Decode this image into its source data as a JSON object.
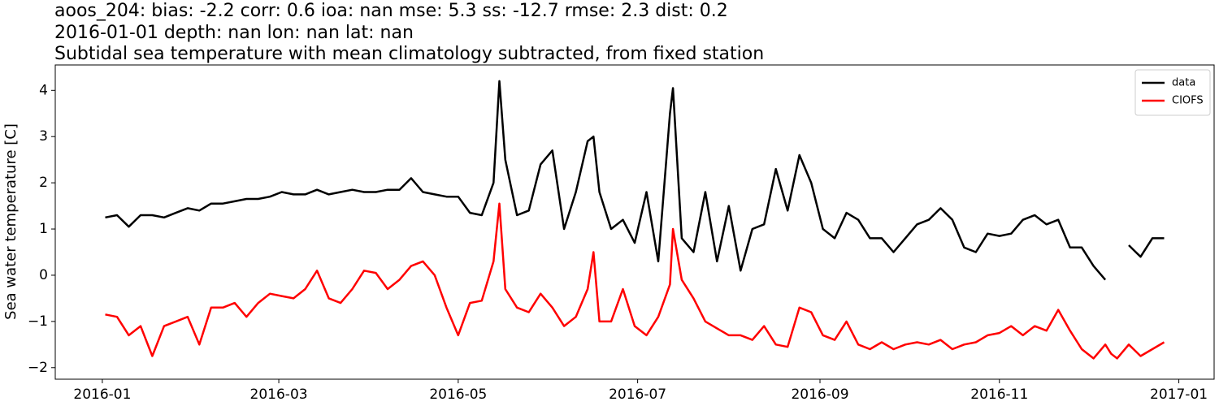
{
  "chart_data": {
    "type": "line",
    "title_lines": [
      "aoos_204: bias: -2.2  corr: 0.6  ioa: nan  mse: 5.3  ss: -12.7  rmse: 2.3  dist: 0.2",
      "2016-01-01 depth: nan lon: nan lat: nan",
      "Subtidal sea temperature with mean climatology subtracted, from fixed station"
    ],
    "ylabel": "Sea water temperature [C]",
    "x": [
      "2016-01-02",
      "2016-01-06",
      "2016-01-10",
      "2016-01-14",
      "2016-01-18",
      "2016-01-22",
      "2016-01-26",
      "2016-01-30",
      "2016-02-03",
      "2016-02-07",
      "2016-02-11",
      "2016-02-15",
      "2016-02-19",
      "2016-02-23",
      "2016-02-27",
      "2016-03-02",
      "2016-03-06",
      "2016-03-10",
      "2016-03-14",
      "2016-03-18",
      "2016-03-22",
      "2016-03-26",
      "2016-03-30",
      "2016-04-03",
      "2016-04-07",
      "2016-04-11",
      "2016-04-15",
      "2016-04-19",
      "2016-04-23",
      "2016-04-27",
      "2016-05-01",
      "2016-05-05",
      "2016-05-09",
      "2016-05-13",
      "2016-05-15",
      "2016-05-17",
      "2016-05-21",
      "2016-05-25",
      "2016-05-29",
      "2016-06-02",
      "2016-06-06",
      "2016-06-10",
      "2016-06-14",
      "2016-06-16",
      "2016-06-18",
      "2016-06-22",
      "2016-06-26",
      "2016-06-30",
      "2016-07-04",
      "2016-07-08",
      "2016-07-12",
      "2016-07-13",
      "2016-07-16",
      "2016-07-20",
      "2016-07-24",
      "2016-07-28",
      "2016-08-01",
      "2016-08-05",
      "2016-08-09",
      "2016-08-13",
      "2016-08-17",
      "2016-08-21",
      "2016-08-25",
      "2016-08-29",
      "2016-09-02",
      "2016-09-06",
      "2016-09-10",
      "2016-09-14",
      "2016-09-18",
      "2016-09-22",
      "2016-09-26",
      "2016-09-30",
      "2016-10-04",
      "2016-10-08",
      "2016-10-12",
      "2016-10-16",
      "2016-10-20",
      "2016-10-24",
      "2016-10-28",
      "2016-11-01",
      "2016-11-05",
      "2016-11-09",
      "2016-11-13",
      "2016-11-17",
      "2016-11-21",
      "2016-11-25",
      "2016-11-29",
      "2016-12-03",
      "2016-12-07",
      "2016-12-09",
      "2016-12-11",
      "2016-12-15",
      "2016-12-19",
      "2016-12-23",
      "2016-12-27"
    ],
    "series": [
      {
        "name": "data",
        "color": "#000000",
        "values": [
          1.25,
          1.3,
          1.05,
          1.3,
          1.3,
          1.25,
          1.35,
          1.45,
          1.4,
          1.55,
          1.55,
          1.6,
          1.65,
          1.65,
          1.7,
          1.8,
          1.75,
          1.75,
          1.85,
          1.75,
          1.8,
          1.85,
          1.8,
          1.8,
          1.85,
          1.85,
          2.1,
          1.8,
          1.75,
          1.7,
          1.7,
          1.35,
          1.3,
          2.0,
          4.2,
          2.5,
          1.3,
          1.4,
          2.4,
          2.7,
          1.0,
          1.8,
          2.9,
          3.0,
          1.8,
          1.0,
          1.2,
          0.7,
          1.8,
          0.3,
          3.5,
          4.05,
          0.8,
          0.5,
          1.8,
          0.3,
          1.5,
          0.1,
          1.0,
          1.1,
          2.3,
          1.4,
          2.6,
          2.0,
          1.0,
          0.8,
          1.35,
          1.2,
          0.8,
          0.8,
          0.5,
          0.8,
          1.1,
          1.2,
          1.45,
          1.2,
          0.6,
          0.5,
          0.9,
          0.85,
          0.9,
          1.2,
          1.3,
          1.1,
          1.2,
          0.6,
          0.6,
          0.2,
          -0.1,
          null,
          null,
          0.65,
          0.4,
          0.8,
          0.8
        ]
      },
      {
        "name": "CIOFS",
        "color": "#ff0000",
        "values": [
          -0.85,
          -0.9,
          -1.3,
          -1.1,
          -1.75,
          -1.1,
          -1.0,
          -0.9,
          -1.5,
          -0.7,
          -0.7,
          -0.6,
          -0.9,
          -0.6,
          -0.4,
          -0.45,
          -0.5,
          -0.3,
          0.1,
          -0.5,
          -0.6,
          -0.3,
          0.1,
          0.05,
          -0.3,
          -0.1,
          0.2,
          0.3,
          0.0,
          -0.7,
          -1.3,
          -0.6,
          -0.55,
          0.3,
          1.55,
          -0.3,
          -0.7,
          -0.8,
          -0.4,
          -0.7,
          -1.1,
          -0.9,
          -0.3,
          0.5,
          -1.0,
          -1.0,
          -0.3,
          -1.1,
          -1.3,
          -0.9,
          -0.2,
          1.0,
          -0.1,
          -0.5,
          -1.0,
          -1.15,
          -1.3,
          -1.3,
          -1.4,
          -1.1,
          -1.5,
          -1.55,
          -0.7,
          -0.8,
          -1.3,
          -1.4,
          -1.0,
          -1.5,
          -1.6,
          -1.45,
          -1.6,
          -1.5,
          -1.45,
          -1.5,
          -1.4,
          -1.6,
          -1.5,
          -1.45,
          -1.3,
          -1.25,
          -1.1,
          -1.3,
          -1.1,
          -1.2,
          -0.75,
          -1.2,
          -1.6,
          -1.8,
          -1.5,
          -1.7,
          -1.8,
          -1.5,
          -1.75,
          -1.6,
          -1.45
        ]
      }
    ],
    "xlim": [
      "2015-12-16",
      "2017-01-13"
    ],
    "xticks": [
      {
        "value": "2016-01-01",
        "label": "2016-01"
      },
      {
        "value": "2016-03-01",
        "label": "2016-03"
      },
      {
        "value": "2016-05-01",
        "label": "2016-05"
      },
      {
        "value": "2016-07-01",
        "label": "2016-07"
      },
      {
        "value": "2016-09-01",
        "label": "2016-09"
      },
      {
        "value": "2016-11-01",
        "label": "2016-11"
      },
      {
        "value": "2017-01-01",
        "label": "2017-01"
      }
    ],
    "ylim": [
      -2.25,
      4.55
    ],
    "yticks": [
      {
        "value": -2,
        "label": "−2"
      },
      {
        "value": -1,
        "label": "−1"
      },
      0,
      1,
      2,
      3,
      4
    ],
    "grid": false,
    "legend": "upper right"
  }
}
